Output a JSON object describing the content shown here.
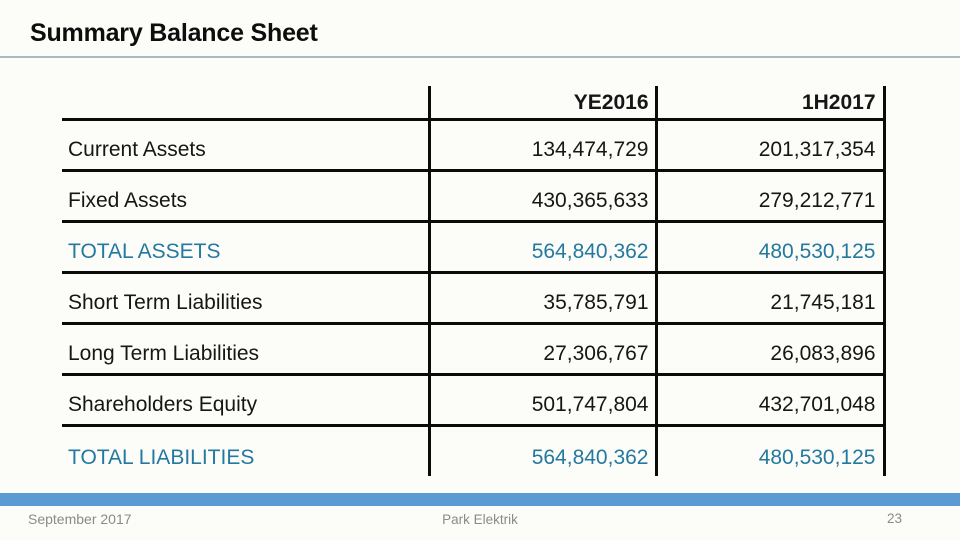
{
  "slide": {
    "title": "Summary Balance Sheet",
    "footer_left": "September 2017",
    "footer_center": "Park Elektrik",
    "page_number": "23"
  },
  "table": {
    "columns": [
      "",
      "YE2016",
      "1H2017"
    ],
    "rows": [
      {
        "label": "Current Assets",
        "ye2016": "134,474,729",
        "h12017": "201,317,354",
        "emphasis": false
      },
      {
        "label": "Fixed Assets",
        "ye2016": "430,365,633",
        "h12017": "279,212,771",
        "emphasis": false
      },
      {
        "label": "TOTAL ASSETS",
        "ye2016": "564,840,362",
        "h12017": "480,530,125",
        "emphasis": true
      },
      {
        "label": "Short Term Liabilities",
        "ye2016": "35,785,791",
        "h12017": "21,745,181",
        "emphasis": false
      },
      {
        "label": "Long Term Liabilities",
        "ye2016": "27,306,767",
        "h12017": "26,083,896",
        "emphasis": false
      },
      {
        "label": "Shareholders Equity",
        "ye2016": "501,747,804",
        "h12017": "432,701,048",
        "emphasis": false
      },
      {
        "label": "TOTAL LIABILITIES",
        "ye2016": "564,840,362",
        "h12017": "480,530,125",
        "emphasis": true
      }
    ]
  },
  "colors": {
    "accent_total_text": "#23799f",
    "footer_bar": "#5b9ad2",
    "title_rule": "#a6bbc6",
    "footer_text": "#8a8a8a",
    "table_border": "#0b0b0b"
  }
}
